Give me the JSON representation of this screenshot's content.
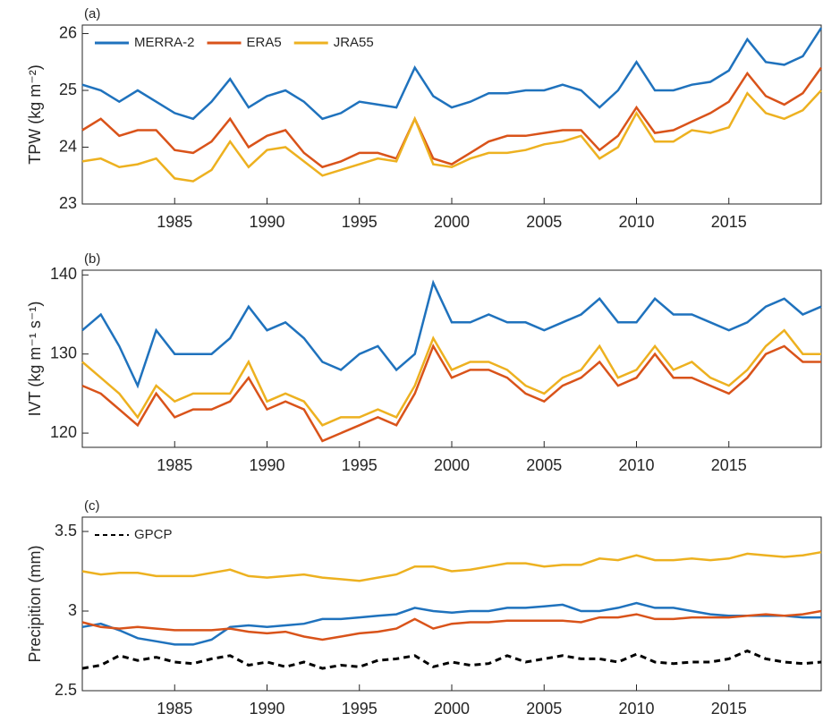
{
  "chart_data": [
    {
      "type": "line",
      "title": "(a)",
      "ylabel": "TPW (kg m⁻²)",
      "legend": "upper left",
      "x": [
        1980,
        1981,
        1982,
        1983,
        1984,
        1985,
        1986,
        1987,
        1988,
        1989,
        1990,
        1991,
        1992,
        1993,
        1994,
        1995,
        1996,
        1997,
        1998,
        1999,
        2000,
        2001,
        2002,
        2003,
        2004,
        2005,
        2006,
        2007,
        2008,
        2009,
        2010,
        2011,
        2012,
        2013,
        2014,
        2015,
        2016,
        2017,
        2018,
        2019,
        2020
      ],
      "xlim": [
        1980,
        2020
      ],
      "xticks": [
        1985,
        1990,
        1995,
        2000,
        2005,
        2010,
        2015
      ],
      "ylim": [
        23,
        26.15
      ],
      "yticks": [
        23,
        24,
        25,
        26
      ],
      "series": [
        {
          "name": "MERRA-2",
          "color": "#1f72bd",
          "values": [
            25.1,
            25.0,
            24.8,
            25.0,
            24.8,
            24.6,
            24.5,
            24.8,
            25.2,
            24.7,
            24.9,
            25.0,
            24.8,
            24.5,
            24.6,
            24.8,
            24.75,
            24.7,
            25.4,
            24.9,
            24.7,
            24.8,
            24.95,
            24.95,
            25.0,
            25.0,
            25.1,
            25.0,
            24.7,
            25.0,
            25.5,
            25.0,
            25.0,
            25.1,
            25.15,
            25.35,
            25.9,
            25.5,
            25.45,
            25.6,
            26.1
          ]
        },
        {
          "name": "ERA5",
          "color": "#d9531a",
          "values": [
            24.3,
            24.5,
            24.2,
            24.3,
            24.3,
            23.95,
            23.9,
            24.1,
            24.5,
            24.0,
            24.2,
            24.3,
            23.9,
            23.65,
            23.75,
            23.9,
            23.9,
            23.8,
            24.5,
            23.8,
            23.7,
            23.9,
            24.1,
            24.2,
            24.2,
            24.25,
            24.3,
            24.3,
            23.95,
            24.2,
            24.7,
            24.25,
            24.3,
            24.45,
            24.6,
            24.8,
            25.3,
            24.9,
            24.75,
            24.95,
            25.4
          ]
        },
        {
          "name": "JRA55",
          "color": "#edb120",
          "values": [
            23.75,
            23.8,
            23.65,
            23.7,
            23.8,
            23.45,
            23.4,
            23.6,
            24.1,
            23.65,
            23.95,
            24.0,
            23.75,
            23.5,
            23.6,
            23.7,
            23.8,
            23.75,
            24.5,
            23.7,
            23.65,
            23.8,
            23.9,
            23.9,
            23.95,
            24.05,
            24.1,
            24.2,
            23.8,
            24.0,
            24.6,
            24.1,
            24.1,
            24.3,
            24.25,
            24.35,
            24.95,
            24.6,
            24.5,
            24.65,
            25.0
          ]
        }
      ]
    },
    {
      "type": "line",
      "title": "(b)",
      "ylabel": "IVT (kg m⁻¹ s⁻¹)",
      "x": [
        1980,
        1981,
        1982,
        1983,
        1984,
        1985,
        1986,
        1987,
        1988,
        1989,
        1990,
        1991,
        1992,
        1993,
        1994,
        1995,
        1996,
        1997,
        1998,
        1999,
        2000,
        2001,
        2002,
        2003,
        2004,
        2005,
        2006,
        2007,
        2008,
        2009,
        2010,
        2011,
        2012,
        2013,
        2014,
        2015,
        2016,
        2017,
        2018,
        2019,
        2020
      ],
      "xlim": [
        1980,
        2020
      ],
      "xticks": [
        1985,
        1990,
        1995,
        2000,
        2005,
        2010,
        2015
      ],
      "ylim": [
        118.2,
        140.6
      ],
      "yticks": [
        120,
        130,
        140
      ],
      "series": [
        {
          "color": "#1f72bd",
          "values": [
            133,
            135,
            131,
            126,
            133,
            130,
            130,
            130,
            132,
            136,
            133,
            134,
            132,
            129,
            128,
            130,
            131,
            128,
            130,
            139,
            134,
            134,
            135,
            134,
            134,
            133,
            134,
            135,
            137,
            134,
            134,
            137,
            135,
            135,
            134,
            133,
            134,
            136,
            137,
            135,
            136
          ]
        },
        {
          "color": "#d9531a",
          "values": [
            126,
            125,
            123,
            121,
            125,
            122,
            123,
            123,
            124,
            127,
            123,
            124,
            123,
            119,
            120,
            121,
            122,
            121,
            125,
            131,
            127,
            128,
            128,
            127,
            125,
            124,
            126,
            127,
            129,
            126,
            127,
            130,
            127,
            127,
            126,
            125,
            127,
            130,
            131,
            129,
            129
          ]
        },
        {
          "color": "#edb120",
          "values": [
            129,
            127,
            125,
            122,
            126,
            124,
            125,
            125,
            125,
            129,
            124,
            125,
            124,
            121,
            122,
            122,
            123,
            122,
            126,
            132,
            128,
            129,
            129,
            128,
            126,
            125,
            127,
            128,
            131,
            127,
            128,
            131,
            128,
            129,
            127,
            126,
            128,
            131,
            133,
            130,
            130
          ]
        }
      ]
    },
    {
      "type": "line",
      "title": "(c)",
      "ylabel": "Precipition (mm)",
      "legend": "upper left",
      "x": [
        1980,
        1981,
        1982,
        1983,
        1984,
        1985,
        1986,
        1987,
        1988,
        1989,
        1990,
        1991,
        1992,
        1993,
        1994,
        1995,
        1996,
        1997,
        1998,
        1999,
        2000,
        2001,
        2002,
        2003,
        2004,
        2005,
        2006,
        2007,
        2008,
        2009,
        2010,
        2011,
        2012,
        2013,
        2014,
        2015,
        2016,
        2017,
        2018,
        2019,
        2020
      ],
      "xlim": [
        1980,
        2020
      ],
      "xticks": [
        1985,
        1990,
        1995,
        2000,
        2005,
        2010,
        2015
      ],
      "ylim": [
        2.5,
        3.59
      ],
      "yticks": [
        2.5,
        3,
        3.5
      ],
      "series": [
        {
          "color": "#1f72bd",
          "values": [
            2.9,
            2.92,
            2.88,
            2.83,
            2.81,
            2.79,
            2.79,
            2.82,
            2.9,
            2.91,
            2.9,
            2.91,
            2.92,
            2.95,
            2.95,
            2.96,
            2.97,
            2.98,
            3.02,
            3.0,
            2.99,
            3.0,
            3.0,
            3.02,
            3.02,
            3.03,
            3.04,
            3.0,
            3.0,
            3.02,
            3.05,
            3.02,
            3.02,
            3.0,
            2.98,
            2.97,
            2.97,
            2.97,
            2.97,
            2.96,
            2.96
          ]
        },
        {
          "color": "#d9531a",
          "values": [
            2.93,
            2.9,
            2.89,
            2.9,
            2.89,
            2.88,
            2.88,
            2.88,
            2.89,
            2.87,
            2.86,
            2.87,
            2.84,
            2.82,
            2.84,
            2.86,
            2.87,
            2.89,
            2.95,
            2.89,
            2.92,
            2.93,
            2.93,
            2.94,
            2.94,
            2.94,
            2.94,
            2.93,
            2.96,
            2.96,
            2.98,
            2.95,
            2.95,
            2.96,
            2.96,
            2.96,
            2.97,
            2.98,
            2.97,
            2.98,
            3.0
          ]
        },
        {
          "color": "#edb120",
          "values": [
            3.25,
            3.23,
            3.24,
            3.24,
            3.22,
            3.22,
            3.22,
            3.24,
            3.26,
            3.22,
            3.21,
            3.22,
            3.23,
            3.21,
            3.2,
            3.19,
            3.21,
            3.23,
            3.28,
            3.28,
            3.25,
            3.26,
            3.28,
            3.3,
            3.3,
            3.28,
            3.29,
            3.29,
            3.33,
            3.32,
            3.35,
            3.32,
            3.32,
            3.33,
            3.32,
            3.33,
            3.36,
            3.35,
            3.34,
            3.35,
            3.37
          ]
        },
        {
          "name": "GPCP",
          "color": "#000000",
          "dashed": true,
          "values": [
            2.64,
            2.66,
            2.72,
            2.69,
            2.71,
            2.68,
            2.67,
            2.7,
            2.72,
            2.66,
            2.68,
            2.65,
            2.68,
            2.64,
            2.66,
            2.65,
            2.69,
            2.7,
            2.72,
            2.65,
            2.68,
            2.66,
            2.67,
            2.72,
            2.68,
            2.7,
            2.72,
            2.7,
            2.7,
            2.68,
            2.73,
            2.68,
            2.67,
            2.68,
            2.68,
            2.7,
            2.75,
            2.7,
            2.68,
            2.67,
            2.68
          ]
        }
      ]
    }
  ]
}
